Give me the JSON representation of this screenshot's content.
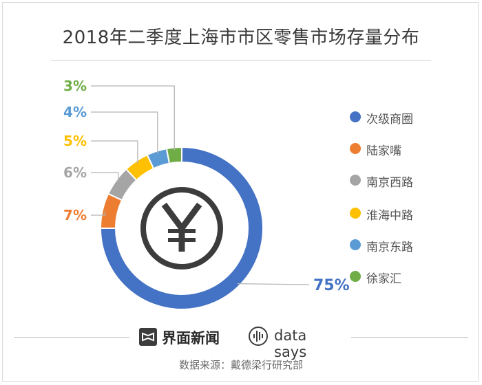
{
  "chart_data": {
    "type": "pie",
    "title": "2018年二季度上海市市区零售市场存量分布",
    "categories": [
      "次级商圈",
      "陆家嘴",
      "南京西路",
      "淮海中路",
      "南京东路",
      "徐家汇"
    ],
    "values": [
      75,
      7,
      6,
      5,
      4,
      3
    ],
    "value_labels": [
      "75%",
      "7%",
      "6%",
      "5%",
      "4%",
      "3%"
    ],
    "colors": [
      "#4472c4",
      "#ed7d31",
      "#a5a5a5",
      "#ffc000",
      "#5b9bd5",
      "#70ad47"
    ],
    "legend_placement": "right",
    "center_icon": "yen-icon"
  },
  "brand": {
    "name": "界面新闻",
    "logo_icon": "jiemian-logo-icon",
    "partner": "data says",
    "partner_icon": "data-says-logo-icon"
  },
  "source": "数据来源：戴德梁行研究部"
}
